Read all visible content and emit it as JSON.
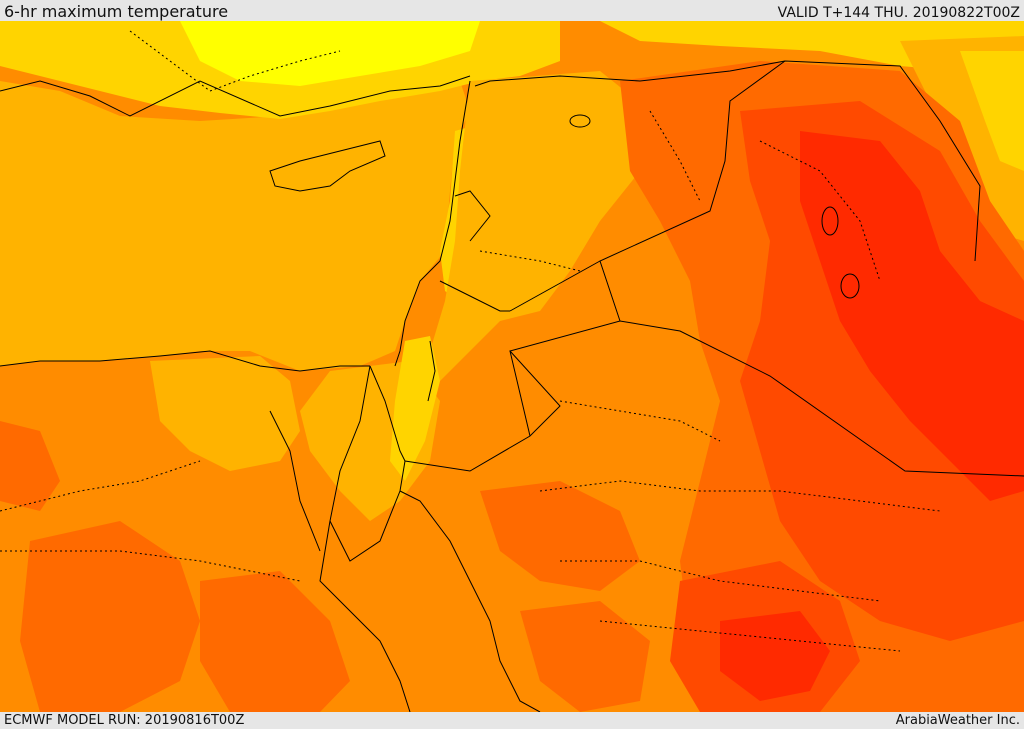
{
  "header": {
    "title": "6-hr maximum temperature",
    "valid": "VALID T+144 THU. 20190822T00Z"
  },
  "footer": {
    "model_run": "ECMWF MODEL RUN: 20190816T00Z",
    "credit": "ArabiaWeather Inc."
  },
  "colors": {
    "cool": "#ffd400",
    "mild": "#ffb300",
    "warm": "#ff8c00",
    "hot": "#ff6a00",
    "hotter": "#ff4a00",
    "hottest": "#ff2a00",
    "pale": "#ffff00",
    "border": "#000000"
  }
}
